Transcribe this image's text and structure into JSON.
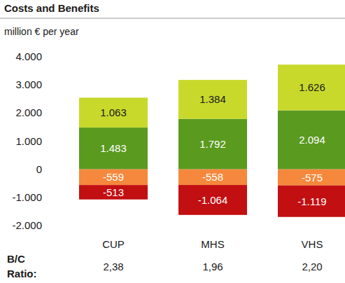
{
  "chart_data": {
    "type": "bar",
    "title": "Costs and Benefits",
    "subtitle": "million € per year",
    "stacked": true,
    "data_labels": true,
    "grid": false,
    "categories": [
      "CUP",
      "MHS",
      "VHS"
    ],
    "series": [
      {
        "color": "#5a9a1f",
        "values": [
          1483,
          1792,
          2094
        ],
        "value_labels": [
          "1.483",
          "1.792",
          "2.094"
        ]
      },
      {
        "color": "#c8d92c",
        "values": [
          1063,
          1384,
          1626
        ],
        "value_labels": [
          "1.063",
          "1.384",
          "1.626"
        ]
      },
      {
        "color": "#f5883c",
        "values": [
          -559,
          -558,
          -575
        ]
      },
      {
        "color": "#c20f12",
        "values": [
          -513,
          -1064,
          -1119
        ],
        "value_labels": [
          "-513",
          "-1.064",
          "-1.119"
        ]
      }
    ],
    "ylim": [
      -2000,
      4000
    ],
    "yticks": [
      {
        "value": -2000,
        "label": "-2.000"
      },
      {
        "value": -1000,
        "label": "-1.000"
      },
      0,
      {
        "value": 1000,
        "label": "1.000"
      },
      {
        "value": 2000,
        "label": "2.000"
      },
      {
        "value": 3000,
        "label": "3.000"
      },
      {
        "value": 4000,
        "label": "4.000"
      }
    ],
    "ratio_title": "B/C Ratio:",
    "ratios": [
      2.38,
      1.96,
      2.2
    ],
    "ratio_labels": [
      "2,38",
      "1,96",
      "2,20"
    ]
  }
}
